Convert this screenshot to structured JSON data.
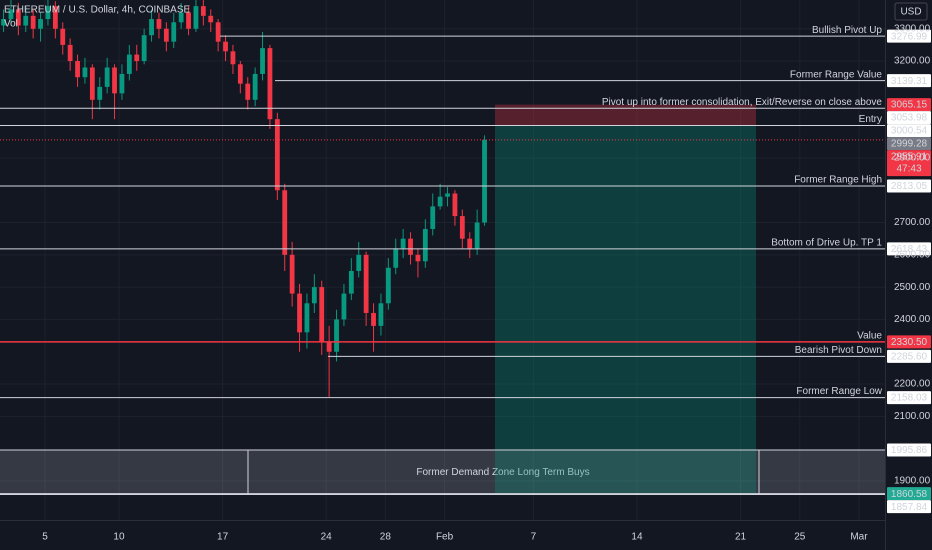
{
  "chart_data": {
    "type": "candlestick",
    "title": "ETHEREUM / U.S. Dollar, 4h, COINBASE",
    "subtitle": "Vol",
    "currency": "USD",
    "xlim": [
      1.96,
      61.76
    ],
    "ylim": [
      1779,
      3389
    ],
    "xticks": [
      5,
      10,
      17,
      24,
      28,
      {
        "value": 32,
        "label": "Feb"
      },
      {
        "value": 38,
        "label": "7"
      },
      {
        "value": 45,
        "label": "14"
      },
      {
        "value": 52,
        "label": "21"
      },
      {
        "value": 56,
        "label": "25"
      },
      {
        "value": 60,
        "label": "Mar"
      }
    ],
    "yticks": [
      {
        "value": 3300,
        "label": "3300.00"
      },
      {
        "value": 3200,
        "label": "3200.00"
      },
      {
        "value": 2900,
        "label": "2900.00"
      },
      {
        "value": 2700,
        "label": "2700.00"
      },
      {
        "value": 2600,
        "label": "2600.00"
      },
      {
        "value": 2500,
        "label": "2500.00"
      },
      {
        "value": 2400,
        "label": "2400.00"
      },
      {
        "value": 2200,
        "label": "2200.00"
      },
      {
        "value": 2100,
        "label": "2100.00"
      },
      {
        "value": 1900,
        "label": "1900.00"
      }
    ],
    "grid": true,
    "up_color": "#089981",
    "down_color": "#f23645",
    "x": [
      2.2,
      2.7,
      3.2,
      3.7,
      4.2,
      4.7,
      5.2,
      5.7,
      6.2,
      6.7,
      7.2,
      7.7,
      8.2,
      8.7,
      9.2,
      9.7,
      10.2,
      10.7,
      11.2,
      11.7,
      12.2,
      12.7,
      13.2,
      13.7,
      14.2,
      14.7,
      15.2,
      15.7,
      16.2,
      16.7,
      17.2,
      17.7,
      18.2,
      18.7,
      19.2,
      19.7,
      20.2,
      20.7,
      21.2,
      21.7,
      22.2,
      22.7,
      23.2,
      23.7,
      24.2,
      24.7,
      25.2,
      25.7,
      26.2,
      26.7,
      27.2,
      27.7,
      28.2,
      28.7,
      29.2,
      29.7,
      30.2,
      30.7,
      31.2,
      31.7,
      32.2,
      32.7,
      33.2,
      33.7,
      34.2,
      34.7
    ],
    "open": [
      3310,
      3330,
      3360,
      3310,
      3340,
      3300,
      3330,
      3370,
      3300,
      3250,
      3200,
      3150,
      3180,
      3080,
      3120,
      3180,
      3100,
      3160,
      3220,
      3200,
      3280,
      3330,
      3300,
      3260,
      3320,
      3350,
      3300,
      3370,
      3340,
      3320,
      3260,
      3230,
      3190,
      3130,
      3080,
      3160,
      3240,
      3020,
      2800,
      2600,
      2480,
      2360,
      2450,
      2500,
      2330,
      2300,
      2400,
      2480,
      2550,
      2600,
      2420,
      2380,
      2450,
      2560,
      2620,
      2650,
      2600,
      2580,
      2680,
      2750,
      2780,
      2790,
      2720,
      2650,
      2620,
      2700
    ],
    "high": [
      3360,
      3395,
      3380,
      3370,
      3360,
      3350,
      3395,
      3385,
      3320,
      3270,
      3220,
      3210,
      3190,
      3150,
      3210,
      3190,
      3190,
      3250,
      3250,
      3300,
      3360,
      3350,
      3320,
      3350,
      3380,
      3370,
      3395,
      3390,
      3360,
      3330,
      3280,
      3250,
      3200,
      3150,
      3180,
      3290,
      3250,
      3040,
      2820,
      2640,
      2510,
      2480,
      2540,
      2520,
      2380,
      2430,
      2510,
      2590,
      2640,
      2610,
      2450,
      2480,
      2590,
      2650,
      2680,
      2670,
      2620,
      2710,
      2790,
      2820,
      2810,
      2800,
      2740,
      2670,
      2740,
      2970
    ],
    "low": [
      3290,
      3310,
      3280,
      3290,
      3270,
      3260,
      3310,
      3270,
      3220,
      3170,
      3120,
      3130,
      3020,
      3050,
      3100,
      3020,
      3080,
      3140,
      3170,
      3190,
      3260,
      3270,
      3230,
      3240,
      3300,
      3280,
      3290,
      3310,
      3290,
      3230,
      3200,
      3160,
      3100,
      3050,
      3060,
      3140,
      2990,
      2770,
      2550,
      2440,
      2300,
      2310,
      2420,
      2290,
      2160,
      2270,
      2380,
      2460,
      2530,
      2380,
      2300,
      2350,
      2430,
      2540,
      2590,
      2570,
      2530,
      2560,
      2660,
      2740,
      2750,
      2690,
      2620,
      2590,
      2600,
      2690
    ],
    "close": [
      3330,
      3360,
      3310,
      3340,
      3300,
      3330,
      3370,
      3300,
      3250,
      3200,
      3150,
      3180,
      3080,
      3120,
      3180,
      3100,
      3160,
      3220,
      3200,
      3280,
      3330,
      3300,
      3260,
      3320,
      3350,
      3300,
      3370,
      3340,
      3320,
      3260,
      3230,
      3190,
      3130,
      3080,
      3160,
      3240,
      3020,
      2800,
      2600,
      2480,
      2360,
      2450,
      2500,
      2330,
      2300,
      2400,
      2480,
      2550,
      2600,
      2420,
      2380,
      2450,
      2560,
      2620,
      2650,
      2600,
      2580,
      2680,
      2750,
      2780,
      2790,
      2720,
      2650,
      2620,
      2700,
      2955.91
    ],
    "levels": [
      {
        "price": 3276.99,
        "label": "Bullish Pivot Up"
      },
      {
        "price": 3139.31,
        "label": "Former Range Value"
      },
      {
        "price": 3053.98,
        "label": "Pivot up into former consolidation, Exit/Reverse on close above"
      },
      {
        "price": 3000.54,
        "label": "Entry"
      },
      {
        "price": 2813.05,
        "label": "Former Range High"
      },
      {
        "price": 2618.43,
        "label": "Bottom of Drive Up. TP 1"
      },
      {
        "price": 2330.5,
        "price_label": "2330.50",
        "label": "Value",
        "color": "#f23645"
      },
      {
        "price": 2285.6,
        "price_label": "2285.60",
        "label": "Bearish Pivot Down"
      },
      {
        "price": 2158.03,
        "label": "Former Range Low"
      }
    ],
    "position": {
      "entry": 2999.28,
      "stop": 3065.15,
      "target": 1860.58
    },
    "current": {
      "price": 2955.91,
      "countdown": "47:43"
    },
    "zone": {
      "top": 1995.86,
      "bottom": 1857.84,
      "label": "Former Demand Zone Long Term Buys"
    }
  }
}
